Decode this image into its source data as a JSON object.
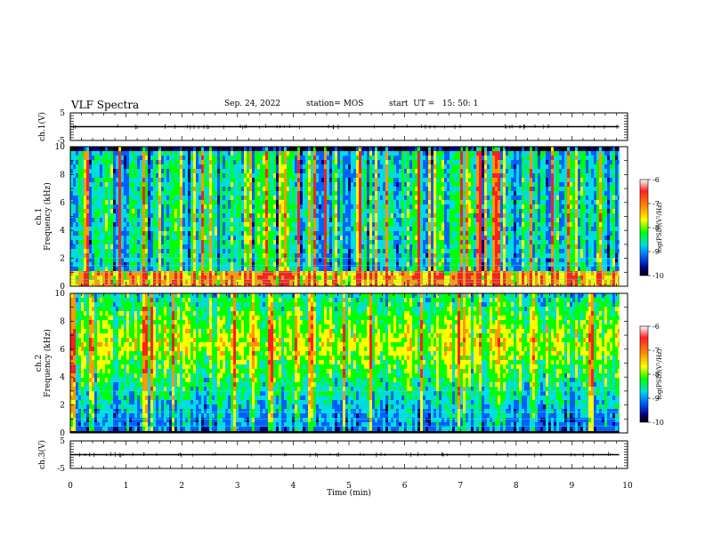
{
  "header": {
    "title": "VLF Spectra",
    "date": "Sep. 24, 2022",
    "station": "station= MOS",
    "start": "start  UT =   15: 50: 1"
  },
  "chart_data": [
    {
      "type": "line",
      "panel": "ch1-waveform",
      "ylabel": "ch.1(V)",
      "ylim": [
        -5,
        5
      ],
      "yticks": [
        "5",
        "-5"
      ],
      "series": [
        {
          "values": [
            0,
            0,
            0,
            0,
            0,
            0,
            0,
            0,
            0,
            0,
            0,
            0,
            0,
            0,
            0,
            0,
            0,
            0,
            0,
            0,
            0
          ]
        }
      ],
      "x": [
        0,
        0.5,
        1,
        1.5,
        2,
        2.5,
        3,
        3.5,
        4,
        4.5,
        5,
        5.5,
        6,
        6.5,
        7,
        7.5,
        8,
        8.5,
        9,
        9.5,
        9.85
      ]
    },
    {
      "type": "heatmap",
      "panel": "ch1-spectrogram",
      "ylabel": "ch.1\nFrequency (kHz)",
      "ylim": [
        0,
        10
      ],
      "yticks": [
        "0",
        "2",
        "4",
        "6",
        "8",
        "10"
      ],
      "colorbar": {
        "label": "log(PSD)(V²/Hz)",
        "ticks": [
          "-6",
          "-7",
          "-8",
          "-9",
          "-10"
        ],
        "colors": [
          "#ffffff",
          "#ff2020",
          "#ff9900",
          "#ffff00",
          "#00ff00",
          "#00dddd",
          "#0060ff",
          "#000080",
          "#000000"
        ]
      },
      "time_range_min": [
        0,
        9.85
      ],
      "band_peak_kHz": 0.8
    },
    {
      "type": "heatmap",
      "panel": "ch2-spectrogram",
      "ylabel": "ch.2\nFrequency (kHz)",
      "ylim": [
        0,
        10
      ],
      "yticks": [
        "0",
        "2",
        "4",
        "6",
        "8",
        "10"
      ],
      "colorbar": {
        "label": "log(PSD)(V²/Hz)",
        "ticks": [
          "-6",
          "-7",
          "-8",
          "-9",
          "-10"
        ],
        "colors": [
          "#ffffff",
          "#ff2020",
          "#ff9900",
          "#ffff00",
          "#00ff00",
          "#00dddd",
          "#0060ff",
          "#000080",
          "#000000"
        ]
      },
      "time_range_min": [
        0,
        9.85
      ],
      "band_peak_kHz": 6.5
    },
    {
      "type": "line",
      "panel": "ch3-waveform",
      "ylabel": "ch.3(V)",
      "ylim": [
        -5,
        5
      ],
      "yticks": [
        "5",
        "-5"
      ],
      "series": [
        {
          "values": [
            0,
            0,
            0,
            0,
            0,
            0,
            0,
            0,
            0,
            0,
            0,
            0,
            0,
            0,
            0,
            0,
            0,
            0,
            0,
            0,
            0
          ]
        }
      ],
      "x": [
        0,
        0.5,
        1,
        1.5,
        2,
        2.5,
        3,
        3.5,
        4,
        4.5,
        5,
        5.5,
        6,
        6.5,
        7,
        7.5,
        8,
        8.5,
        9,
        9.5,
        9.85
      ],
      "xlabel": "Time  (min)",
      "xlim": [
        0,
        10
      ],
      "xticks": [
        "0",
        "1",
        "2",
        "3",
        "4",
        "5",
        "6",
        "7",
        "8",
        "9",
        "10"
      ]
    }
  ]
}
